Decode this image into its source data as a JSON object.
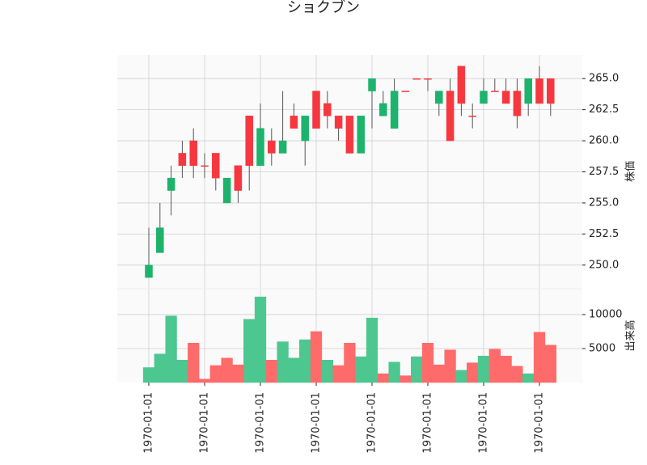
{
  "chart_data": {
    "type": "candlestick",
    "title": "ショクブン",
    "categories": [
      "1970-01-01",
      null,
      null,
      null,
      null,
      "1970-01-01",
      null,
      null,
      null,
      null,
      "1970-01-01",
      null,
      null,
      null,
      null,
      "1970-01-01",
      null,
      null,
      null,
      null,
      "1970-01-01",
      null,
      null,
      null,
      null,
      "1970-01-01",
      null,
      null,
      null,
      null,
      "1970-01-01",
      null,
      null,
      null,
      null,
      "1970-01-01",
      null
    ],
    "open": [
      249,
      251,
      256,
      259,
      260,
      258,
      259,
      255,
      258,
      262,
      258,
      260,
      259,
      262,
      260,
      264,
      263,
      262,
      262,
      259,
      264,
      262,
      261,
      264,
      265,
      265,
      263,
      264,
      266,
      262,
      263,
      264,
      264,
      264,
      263,
      265,
      265
    ],
    "high": [
      253,
      255,
      258,
      260,
      261,
      259,
      259,
      257,
      258,
      262,
      263,
      261,
      264,
      263,
      262,
      264,
      264,
      262,
      262,
      262,
      265,
      264,
      265,
      264,
      265,
      265,
      264,
      265,
      266,
      263,
      265,
      265,
      265,
      265,
      265,
      266,
      265
    ],
    "low": [
      249,
      251,
      254,
      257,
      257,
      257,
      256,
      255,
      255,
      256,
      258,
      258,
      259,
      261,
      258,
      261,
      261,
      260,
      259,
      259,
      261,
      262,
      261,
      264,
      265,
      264,
      262,
      260,
      262,
      261,
      263,
      264,
      263,
      261,
      262,
      263,
      262
    ],
    "close": [
      250,
      253,
      257,
      258,
      258,
      258,
      257,
      257,
      256,
      258,
      261,
      259,
      260,
      261,
      262,
      261,
      262,
      261,
      259,
      262,
      265,
      263,
      264,
      264,
      265,
      265,
      264,
      260,
      263,
      262,
      264,
      264,
      263,
      262,
      265,
      263,
      263
    ],
    "up_color": "#1cb36d",
    "down_color": "#f6373f",
    "ylim": [
      248.1,
      266.9
    ],
    "yticks": [
      {
        "value": 250,
        "label": "250.0"
      },
      {
        "value": 252.5,
        "label": "252.5"
      },
      {
        "value": 255,
        "label": "255.0"
      },
      {
        "value": 257.5,
        "label": "257.5"
      },
      {
        "value": 260,
        "label": "260.0"
      },
      {
        "value": 262.5,
        "label": "262.5"
      },
      {
        "value": 265,
        "label": "265.0"
      }
    ],
    "ylabel": "株価",
    "volume": {
      "values": [
        2200,
        4200,
        9800,
        3300,
        5800,
        500,
        2500,
        3600,
        2600,
        9300,
        12600,
        3300,
        6000,
        3600,
        6300,
        7500,
        3300,
        2500,
        5800,
        3800,
        9500,
        1300,
        3000,
        1000,
        3800,
        5800,
        2600,
        4800,
        1800,
        2900,
        3900,
        4900,
        3900,
        2400,
        1300,
        7400,
        5500
      ],
      "ylim": [
        0,
        13800
      ],
      "yticks": [
        5000,
        10000
      ],
      "label": "出来高",
      "up_color": "#4cc790",
      "down_color": "#ff6b6b"
    },
    "grid": true
  }
}
